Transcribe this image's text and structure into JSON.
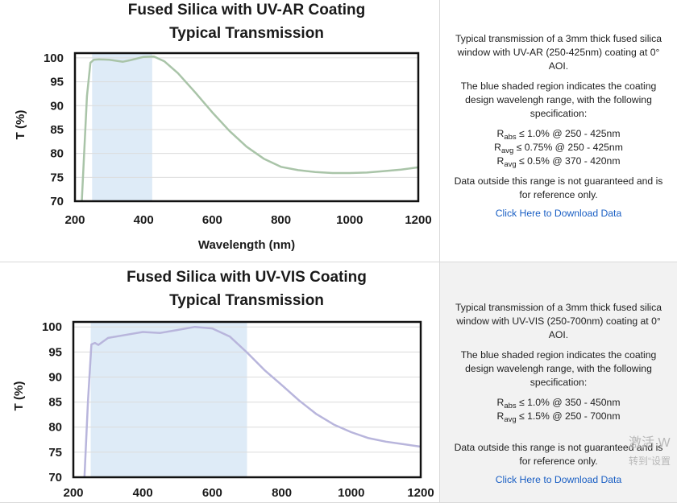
{
  "chart_data": [
    {
      "type": "line",
      "title_line1": "Fused Silica with UV-AR Coating",
      "title_line2": "Typical Transmission",
      "xlabel": "Wavelength (nm)",
      "ylabel": "T (%)",
      "xlim": [
        200,
        1200
      ],
      "ylim": [
        70,
        101
      ],
      "xticks": [
        "200",
        "400",
        "600",
        "800",
        "1000",
        "1200"
      ],
      "yticks": [
        "70",
        "75",
        "80",
        "85",
        "90",
        "95",
        "100"
      ],
      "grid": "horizontal",
      "line_color": "#a9c4a8",
      "shade_color": "#deebf7",
      "shaded_range": [
        250,
        425
      ],
      "series": [
        {
          "x": [
            220,
            235,
            245,
            255,
            270,
            300,
            340,
            360,
            400,
            430,
            460,
            500,
            550,
            600,
            650,
            700,
            750,
            800,
            850,
            900,
            950,
            1000,
            1050,
            1100,
            1150,
            1200
          ],
          "y": [
            70,
            92,
            99,
            99.6,
            99.7,
            99.6,
            99.2,
            99.5,
            100.2,
            100.3,
            99.3,
            96.8,
            92.8,
            88.6,
            84.7,
            81.4,
            78.9,
            77.2,
            76.5,
            76.1,
            75.9,
            75.9,
            76.0,
            76.3,
            76.6,
            77.1
          ]
        }
      ]
    },
    {
      "type": "line",
      "title_line1": "Fused Silica with UV-VIS Coating",
      "title_line2": "Typical Transmission",
      "xlabel": "",
      "ylabel": "T (%)",
      "xlim": [
        200,
        1200
      ],
      "ylim": [
        70,
        101
      ],
      "xticks": [
        "200",
        "400",
        "600",
        "800",
        "1000",
        "1200"
      ],
      "yticks": [
        "70",
        "75",
        "80",
        "85",
        "90",
        "95",
        "100"
      ],
      "grid": "horizontal",
      "line_color": "#b8b5dc",
      "shade_color": "#deebf7",
      "shaded_range": [
        250,
        700
      ],
      "series": [
        {
          "x": [
            232,
            242,
            252,
            262,
            272,
            300,
            350,
            400,
            450,
            500,
            550,
            600,
            650,
            700,
            750,
            800,
            850,
            900,
            950,
            1000,
            1050,
            1100,
            1150,
            1200
          ],
          "y": [
            70,
            85,
            96.5,
            96.8,
            96.4,
            97.8,
            98.4,
            99.0,
            98.8,
            99.4,
            100.0,
            99.7,
            98.1,
            94.9,
            91.4,
            88.4,
            85.3,
            82.6,
            80.5,
            79.0,
            77.8,
            77.1,
            76.6,
            76.1
          ]
        }
      ]
    }
  ],
  "descriptions": [
    {
      "intro": "Typical transmission of a 3mm thick fused silica window with UV-AR (250-425nm) coating at 0° AOI.",
      "shade_note": "The blue shaded region indicates the coating design wavelengh range, with the following specification:",
      "specs": [
        {
          "sym": "R",
          "sub": "abs",
          "text": " ≤ 1.0% @ 250 - 425nm"
        },
        {
          "sym": "R",
          "sub": "avg",
          "text": " ≤ 0.75% @ 250 - 425nm"
        },
        {
          "sym": "R",
          "sub": "avg",
          "text": " ≤ 0.5% @ 370 - 420nm"
        }
      ],
      "disclaimer": "Data outside this range is not guaranteed and is for reference only.",
      "download": "Click Here to Download Data"
    },
    {
      "intro": "Typical transmission of a 3mm thick fused silica window with UV-VIS (250-700nm) coating at 0° AOI.",
      "shade_note": "The blue shaded region indicates the coating design wavelengh range, with the following specification:",
      "specs": [
        {
          "sym": "R",
          "sub": "abs",
          "text": " ≤ 1.0% @ 350 - 450nm"
        },
        {
          "sym": "R",
          "sub": "avg",
          "text": " ≤ 1.5% @ 250 - 700nm"
        }
      ],
      "disclaimer": "Data outside this range is not guaranteed and is for reference only.",
      "download": "Click Here to Download Data"
    }
  ],
  "watermark": {
    "line1": "激活 W",
    "line2": "转到“设置"
  }
}
